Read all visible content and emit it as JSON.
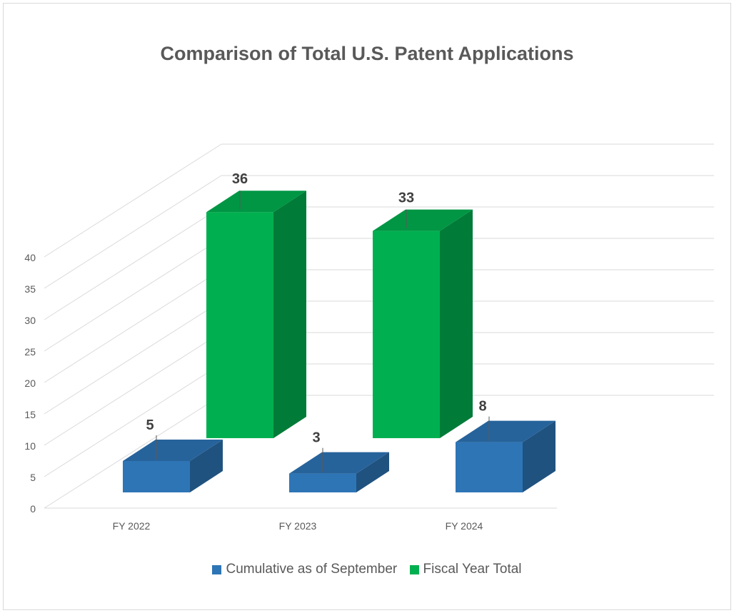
{
  "chart_data": {
    "type": "bar",
    "title": "Comparison of Total U.S. Patent Applications",
    "categories": [
      "FY 2022",
      "FY 2023",
      "FY 2024"
    ],
    "series": [
      {
        "name": "Cumulative as of September",
        "values": [
          5,
          3,
          8
        ],
        "color": "#2e75b6"
      },
      {
        "name": "Fiscal Year Total",
        "values": [
          36,
          33,
          null
        ],
        "color": "#00b050"
      }
    ],
    "y_ticks": [
      0,
      5,
      10,
      15,
      20,
      25,
      30,
      35,
      40
    ],
    "ylim": [
      0,
      40
    ],
    "legend_position": "bottom",
    "grid": true,
    "style": "3d-column"
  }
}
